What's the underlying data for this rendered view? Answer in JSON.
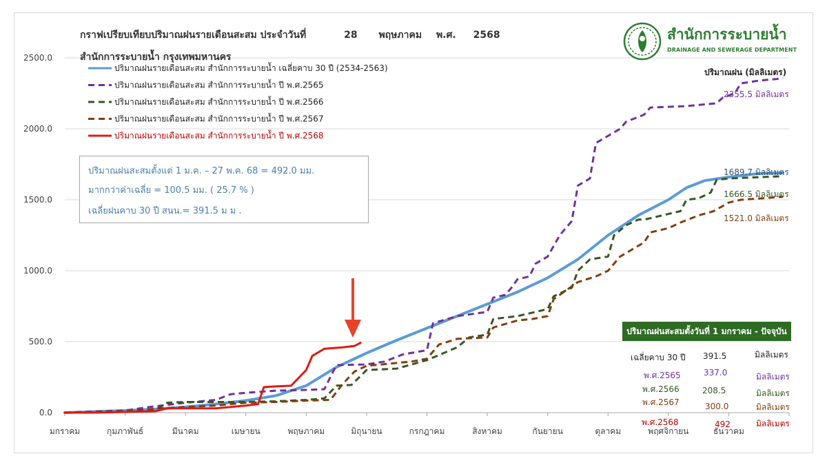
{
  "title": {
    "text": "กราฟเปรียบเทียบปริมาณฝนรายเดือนสะสม ประจำวันที่",
    "day": "28",
    "month": "พฤษภาคม",
    "era": "พ.ศ.",
    "year": "2568"
  },
  "subtitle": "สำนักการระบายน้ำ กรุงเทพมหานคร",
  "logo": {
    "thai": "สำนักการระบายน้ำ",
    "english": "DRAINAGE AND SEWERAGE DEPARTMENT"
  },
  "unit_label": "ปริมาณฝน (มิลลิเมตร)",
  "colors": {
    "avg": "#5b9bd5",
    "y2565": "#7030a0",
    "y2566": "#375623",
    "y2567": "#843c0c",
    "y2568": "#e01a12",
    "arrow": "#e8432a",
    "box_text": "#4a7fa8",
    "table_header": "#2e6b24"
  },
  "info_box": {
    "line1": "ปริมาณฝนสะสมตั้งแต่ 1 ม.ค. – 27 พ.ค. 68 = 492.0 มม.",
    "line2": "มากกว่าค่าเฉลี่ย = 100.5 มม. ( 25.7 % )",
    "line3": "เฉลี่ยฝนคาบ 30 ปี สนน.= 391.5  ม ม ."
  },
  "summary_table": {
    "header": "ปริมาณฝนสะสมตั้งวันที่ 1 มกราคม - ปัจจุบัน",
    "rows": [
      {
        "label": "เฉลี่ยคาบ 30 ปี",
        "value": "391.5",
        "unit": "มิลลิเมตร"
      },
      {
        "label": "พ.ศ.2565",
        "value": "337.0",
        "unit": "มิลลิเมตร"
      },
      {
        "label": "พ.ศ.2566",
        "value": "208.5",
        "unit": "มิลลิเมตร"
      },
      {
        "label": "พ.ศ.2567",
        "value": "300.0",
        "unit": "มิลลิเมตร"
      },
      {
        "label": "พ.ศ.2568",
        "value": "492",
        "unit": "มิลลิเมตร"
      }
    ]
  },
  "end_labels": {
    "y2565": "2355.5 มิลลิเมตร",
    "avg": "1689.7 มิลลิเมตร",
    "y2566": "1666.5 มิลลิเมตร",
    "y2567": "1521.0 มิลลิเมตร"
  },
  "chart_data": {
    "type": "line",
    "ylim": [
      0,
      2500
    ],
    "xlim": [
      0,
      12
    ],
    "ytick_labels": [
      "0.0",
      "500.0",
      "1000.0",
      "1500.0",
      "2000.0",
      "2500.0"
    ],
    "ytick_values": [
      0,
      500,
      1000,
      1500,
      2000,
      2500
    ],
    "xtick_labels": [
      "มกราคม",
      "กุมภาพันธ์",
      "มีนาคม",
      "เมษายน",
      "พฤษภาคม",
      "มิถุนายน",
      "กรกฎาคม",
      "สิงหาคม",
      "กันยายน",
      "ตุลาคม",
      "พฤศจิกายน",
      "ธันวาคม"
    ],
    "grid": "horizontal",
    "legend_position": "top-left",
    "series": [
      {
        "key": "avg",
        "name": "ปริมาณฝนรายเดือนสะสม สำนักการระบายน้ำ เฉลี่ยคาบ 30 ปี (2534-2563)",
        "style": "solid",
        "points": [
          [
            0,
            0
          ],
          [
            0.5,
            8
          ],
          [
            1,
            15
          ],
          [
            1.5,
            25
          ],
          [
            2,
            40
          ],
          [
            2.5,
            60
          ],
          [
            3,
            85
          ],
          [
            3.5,
            120
          ],
          [
            4,
            190
          ],
          [
            4.5,
            320
          ],
          [
            5,
            420
          ],
          [
            5.5,
            510
          ],
          [
            6,
            595
          ],
          [
            6.5,
            680
          ],
          [
            7,
            765
          ],
          [
            7.5,
            850
          ],
          [
            8,
            950
          ],
          [
            8.5,
            1080
          ],
          [
            9,
            1250
          ],
          [
            9.5,
            1390
          ],
          [
            10,
            1500
          ],
          [
            10.3,
            1585
          ],
          [
            10.6,
            1635
          ],
          [
            11,
            1660
          ],
          [
            11.5,
            1685
          ],
          [
            11.9,
            1690
          ]
        ]
      },
      {
        "key": "y2565",
        "name": "ปริมาณฝนรายเดือนสะสม สำนักการระบายน้ำ ปี พ.ศ.2565",
        "style": "dashed",
        "points": [
          [
            0,
            0
          ],
          [
            1,
            15
          ],
          [
            1.4,
            40
          ],
          [
            2,
            70
          ],
          [
            2.5,
            90
          ],
          [
            2.75,
            130
          ],
          [
            3,
            140
          ],
          [
            3.5,
            155
          ],
          [
            4,
            160
          ],
          [
            4.3,
            165
          ],
          [
            4.5,
            335
          ],
          [
            5,
            340
          ],
          [
            5.3,
            360
          ],
          [
            5.6,
            410
          ],
          [
            6,
            440
          ],
          [
            6.1,
            630
          ],
          [
            6.5,
            680
          ],
          [
            7,
            710
          ],
          [
            7.1,
            810
          ],
          [
            7.3,
            830
          ],
          [
            7.4,
            880
          ],
          [
            7.5,
            940
          ],
          [
            7.7,
            960
          ],
          [
            7.8,
            1050
          ],
          [
            8,
            1100
          ],
          [
            8.2,
            1250
          ],
          [
            8.4,
            1350
          ],
          [
            8.5,
            1600
          ],
          [
            8.7,
            1650
          ],
          [
            8.8,
            1900
          ],
          [
            9.2,
            2000
          ],
          [
            9.3,
            2050
          ],
          [
            9.6,
            2100
          ],
          [
            9.7,
            2150
          ],
          [
            10.3,
            2160
          ],
          [
            10.8,
            2180
          ],
          [
            10.9,
            2220
          ],
          [
            11.1,
            2250
          ],
          [
            11.2,
            2320
          ],
          [
            11.5,
            2340
          ],
          [
            11.9,
            2355.5
          ]
        ]
      },
      {
        "key": "y2566",
        "name": "ปริมาณฝนรายเดือนสะสม สำนักการระบายน้ำ ปี พ.ศ.2566",
        "style": "dashed",
        "points": [
          [
            0,
            0
          ],
          [
            1,
            5
          ],
          [
            1.5,
            20
          ],
          [
            1.7,
            70
          ],
          [
            2,
            75
          ],
          [
            3,
            75
          ],
          [
            3.5,
            80
          ],
          [
            4,
            90
          ],
          [
            4.3,
            100
          ],
          [
            4.5,
            190
          ],
          [
            4.75,
            195
          ],
          [
            5,
            300
          ],
          [
            5.5,
            310
          ],
          [
            6,
            370
          ],
          [
            6.5,
            460
          ],
          [
            6.7,
            530
          ],
          [
            7,
            550
          ],
          [
            7.1,
            660
          ],
          [
            7.5,
            680
          ],
          [
            7.7,
            700
          ],
          [
            8,
            730
          ],
          [
            8.1,
            820
          ],
          [
            8.4,
            880
          ],
          [
            8.5,
            1000
          ],
          [
            8.7,
            1080
          ],
          [
            9,
            1100
          ],
          [
            9.1,
            1250
          ],
          [
            9.3,
            1320
          ],
          [
            9.5,
            1360
          ],
          [
            9.6,
            1360
          ],
          [
            10,
            1400
          ],
          [
            10.2,
            1420
          ],
          [
            10.3,
            1500
          ],
          [
            10.5,
            1510
          ],
          [
            10.7,
            1550
          ],
          [
            10.8,
            1640
          ],
          [
            11,
            1650
          ],
          [
            11.9,
            1666.5
          ]
        ]
      },
      {
        "key": "y2567",
        "name": "ปริมาณฝนรายเดือนสะสม สำนักการระบายน้ำ ปี พ.ศ.2567",
        "style": "dashed",
        "points": [
          [
            0,
            0
          ],
          [
            1,
            10
          ],
          [
            1.6,
            30
          ],
          [
            2,
            40
          ],
          [
            2.5,
            50
          ],
          [
            3,
            70
          ],
          [
            3.5,
            75
          ],
          [
            4,
            85
          ],
          [
            4.4,
            90
          ],
          [
            4.6,
            200
          ],
          [
            4.8,
            290
          ],
          [
            5,
            330
          ],
          [
            5.5,
            350
          ],
          [
            5.75,
            360
          ],
          [
            6,
            380
          ],
          [
            6.2,
            480
          ],
          [
            6.5,
            520
          ],
          [
            7,
            530
          ],
          [
            7.1,
            600
          ],
          [
            7.5,
            650
          ],
          [
            7.75,
            660
          ],
          [
            8,
            680
          ],
          [
            8.1,
            800
          ],
          [
            8.5,
            920
          ],
          [
            8.8,
            960
          ],
          [
            9,
            1000
          ],
          [
            9.2,
            1100
          ],
          [
            9.6,
            1200
          ],
          [
            9.7,
            1270
          ],
          [
            10,
            1300
          ],
          [
            10.2,
            1340
          ],
          [
            10.5,
            1390
          ],
          [
            10.75,
            1420
          ],
          [
            11,
            1480
          ],
          [
            11.2,
            1500
          ],
          [
            11.9,
            1521
          ]
        ]
      },
      {
        "key": "y2568",
        "name": "ปริมาณฝนรายเดือนสะสม สำนักการระบายน้ำ ปี พ.ศ.2568",
        "style": "solid",
        "points": [
          [
            0,
            0
          ],
          [
            0.5,
            0
          ],
          [
            1,
            5
          ],
          [
            1.5,
            10
          ],
          [
            1.7,
            30
          ],
          [
            2,
            30
          ],
          [
            2.5,
            30
          ],
          [
            2.75,
            40
          ],
          [
            3,
            50
          ],
          [
            3.2,
            60
          ],
          [
            3.3,
            180
          ],
          [
            3.5,
            185
          ],
          [
            3.75,
            190
          ],
          [
            4,
            300
          ],
          [
            4.1,
            400
          ],
          [
            4.3,
            450
          ],
          [
            4.6,
            460
          ],
          [
            4.8,
            470
          ],
          [
            4.9,
            492
          ]
        ]
      }
    ]
  }
}
